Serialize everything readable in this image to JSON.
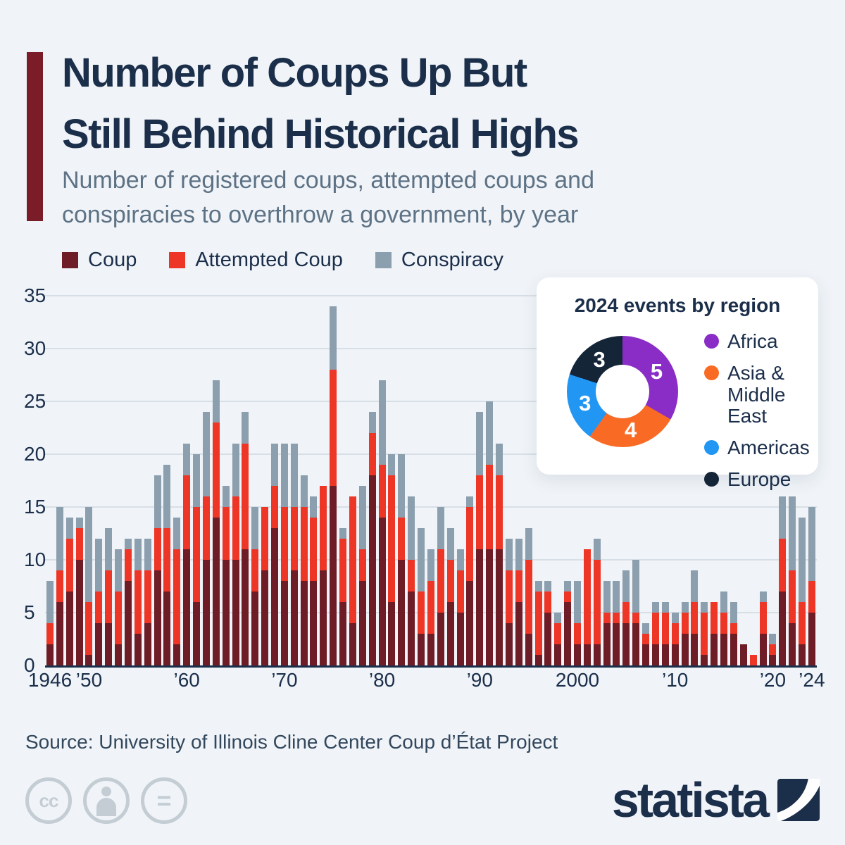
{
  "header": {
    "title_line1": "Number of Coups Up But",
    "title_line2": "Still Behind Historical Highs",
    "subtitle_line1": "Number of registered coups, attempted coups and",
    "subtitle_line2": "conspiracies to overthrow a government, by year"
  },
  "colors": {
    "background": "#f0f4f8",
    "navy_text": "#1b2e4a",
    "subtitle_text": "#5d7285",
    "accent_bar": "#7b1d28",
    "coup": "#6e1c26",
    "attempted_coup": "#ee3627",
    "conspiracy": "#8c9fae",
    "gridline": "#d7dfe6",
    "source_text": "#33475c",
    "cc_gray": "#c4ccd4"
  },
  "chart_data": {
    "type": "bar",
    "stacked": true,
    "grid": true,
    "legend_position": "top",
    "ylim": [
      0,
      35
    ],
    "y_ticks": [
      0,
      5,
      10,
      15,
      20,
      25,
      30,
      35
    ],
    "x_start_year": 1946,
    "x_end_year": 2024,
    "x_tick_labels": [
      {
        "label": "1946",
        "year": 1946
      },
      {
        "label": "’50",
        "year": 1950
      },
      {
        "label": "’60",
        "year": 1960
      },
      {
        "label": "’70",
        "year": 1970
      },
      {
        "label": "’80",
        "year": 1980
      },
      {
        "label": "’90",
        "year": 1990
      },
      {
        "label": "2000",
        "year": 2000
      },
      {
        "label": "’10",
        "year": 2010
      },
      {
        "label": "’20",
        "year": 2020
      },
      {
        "label": "’24",
        "year": 2024
      }
    ],
    "series": [
      {
        "name": "Coup",
        "color": "#6e1c26",
        "values": [
          2,
          6,
          7,
          10,
          1,
          4,
          4,
          2,
          8,
          3,
          4,
          9,
          7,
          2,
          11,
          6,
          10,
          14,
          10,
          10,
          11,
          7,
          9,
          13,
          8,
          9,
          8,
          8,
          9,
          17,
          6,
          4,
          8,
          18,
          14,
          6,
          10,
          7,
          3,
          3,
          5,
          6,
          5,
          8,
          11,
          11,
          11,
          4,
          6,
          3,
          1,
          5,
          2,
          6,
          2,
          2,
          2,
          4,
          4,
          4,
          4,
          2,
          2,
          2,
          2,
          3,
          3,
          1,
          3,
          3,
          3,
          2,
          0,
          3,
          1,
          7,
          4,
          2,
          5
        ]
      },
      {
        "name": "Attempted Coup",
        "color": "#ee3627",
        "values": [
          2,
          3,
          5,
          3,
          5,
          3,
          5,
          5,
          3,
          6,
          5,
          4,
          6,
          9,
          7,
          9,
          6,
          9,
          5,
          6,
          10,
          4,
          6,
          4,
          7,
          6,
          7,
          6,
          8,
          11,
          6,
          12,
          3,
          4,
          5,
          12,
          4,
          3,
          4,
          5,
          6,
          4,
          4,
          7,
          7,
          8,
          7,
          5,
          3,
          7,
          6,
          2,
          2,
          1,
          2,
          9,
          8,
          1,
          1,
          2,
          1,
          1,
          3,
          3,
          2,
          2,
          3,
          4,
          3,
          2,
          1,
          0,
          1,
          3,
          1,
          5,
          5,
          4,
          3
        ]
      },
      {
        "name": "Conspiracy",
        "color": "#8c9fae",
        "values": [
          4,
          6,
          2,
          1,
          9,
          5,
          4,
          4,
          1,
          3,
          3,
          5,
          6,
          3,
          3,
          5,
          8,
          4,
          2,
          5,
          3,
          4,
          0,
          4,
          6,
          6,
          3,
          2,
          0,
          6,
          1,
          0,
          6,
          2,
          8,
          2,
          6,
          6,
          6,
          3,
          4,
          3,
          2,
          1,
          6,
          6,
          3,
          3,
          3,
          3,
          1,
          1,
          1,
          1,
          4,
          0,
          2,
          3,
          3,
          3,
          5,
          1,
          1,
          1,
          1,
          1,
          3,
          1,
          0,
          2,
          2,
          0,
          0,
          1,
          1,
          4,
          7,
          8,
          7
        ]
      }
    ]
  },
  "donut": {
    "title": "2024 events by region",
    "total": 15,
    "slices": [
      {
        "label": "Africa",
        "value": 5,
        "color": "#8a2dc6"
      },
      {
        "label": "Asia &\nMiddle East",
        "value": 4,
        "color": "#f96b25"
      },
      {
        "label": "Americas",
        "value": 3,
        "color": "#2197f3"
      },
      {
        "label": "Europe",
        "value": 3,
        "color": "#152538"
      }
    ]
  },
  "footer": {
    "source": "Source: University of Illinois Cline Center Coup d’État Project",
    "cc_icons": [
      "cc-icon",
      "attribution-person-icon",
      "equal-icon"
    ],
    "brand": "statista"
  }
}
